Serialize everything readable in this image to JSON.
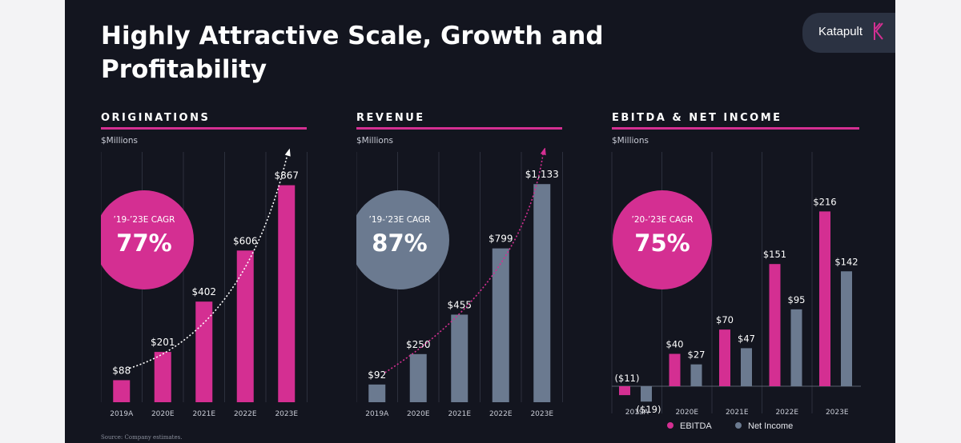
{
  "slide": {
    "title": "Highly Attractive Scale, Growth and Profitability",
    "logo_text": "Katapult",
    "source": "Source: Company estimates."
  },
  "colors": {
    "pink": "#d42f92",
    "slate": "#6b7a90",
    "grid": "#2c303d"
  },
  "panels": [
    {
      "title": "ORIGINATIONS",
      "units": "$Millions"
    },
    {
      "title": "REVENUE",
      "units": "$Millions"
    },
    {
      "title": "EBITDA & NET INCOME",
      "units": "$Millions"
    }
  ],
  "legend": {
    "ebitda": "EBITDA",
    "net_income": "Net Income"
  },
  "chart_data": [
    {
      "type": "bar",
      "title": "ORIGINATIONS",
      "ylabel": "$Millions",
      "categories": [
        "2019A",
        "2020E",
        "2021E",
        "2022E",
        "2023E"
      ],
      "series": [
        {
          "values": [
            88,
            201,
            402,
            606,
            867
          ]
        }
      ],
      "data_labels": [
        "$88",
        "$201",
        "$402",
        "$606",
        "$867"
      ],
      "ylim": [
        0,
        1000
      ],
      "annotation": {
        "label": "’19-’23E CAGR",
        "value": "77%"
      },
      "trend_arrow": true
    },
    {
      "type": "bar",
      "title": "REVENUE",
      "ylabel": "$Millions",
      "categories": [
        "2019A",
        "2020E",
        "2021E",
        "2022E",
        "2023E"
      ],
      "series": [
        {
          "values": [
            92,
            250,
            455,
            799,
            1133
          ]
        }
      ],
      "data_labels": [
        "$92",
        "$250",
        "$455",
        "$799",
        "$1,133"
      ],
      "ylim": [
        0,
        1300
      ],
      "annotation": {
        "label": "’19-’23E CAGR",
        "value": "87%"
      },
      "trend_arrow": true
    },
    {
      "type": "bar",
      "title": "EBITDA & NET INCOME",
      "ylabel": "$Millions",
      "categories": [
        "2019A",
        "2020E",
        "2021E",
        "2022E",
        "2023E"
      ],
      "series": [
        {
          "name": "EBITDA",
          "values": [
            -11,
            40,
            70,
            151,
            216
          ],
          "labels": [
            "($11)",
            "$40",
            "$70",
            "$151",
            "$216"
          ]
        },
        {
          "name": "Net Income",
          "values": [
            -19,
            27,
            47,
            95,
            142
          ],
          "labels": [
            "($19)",
            "$27",
            "$47",
            "$95",
            "$142"
          ]
        }
      ],
      "ylim": [
        -25,
        250
      ],
      "annotation": {
        "label": "’20-’23E CAGR",
        "value": "75%"
      },
      "legend_position": "bottom"
    }
  ]
}
